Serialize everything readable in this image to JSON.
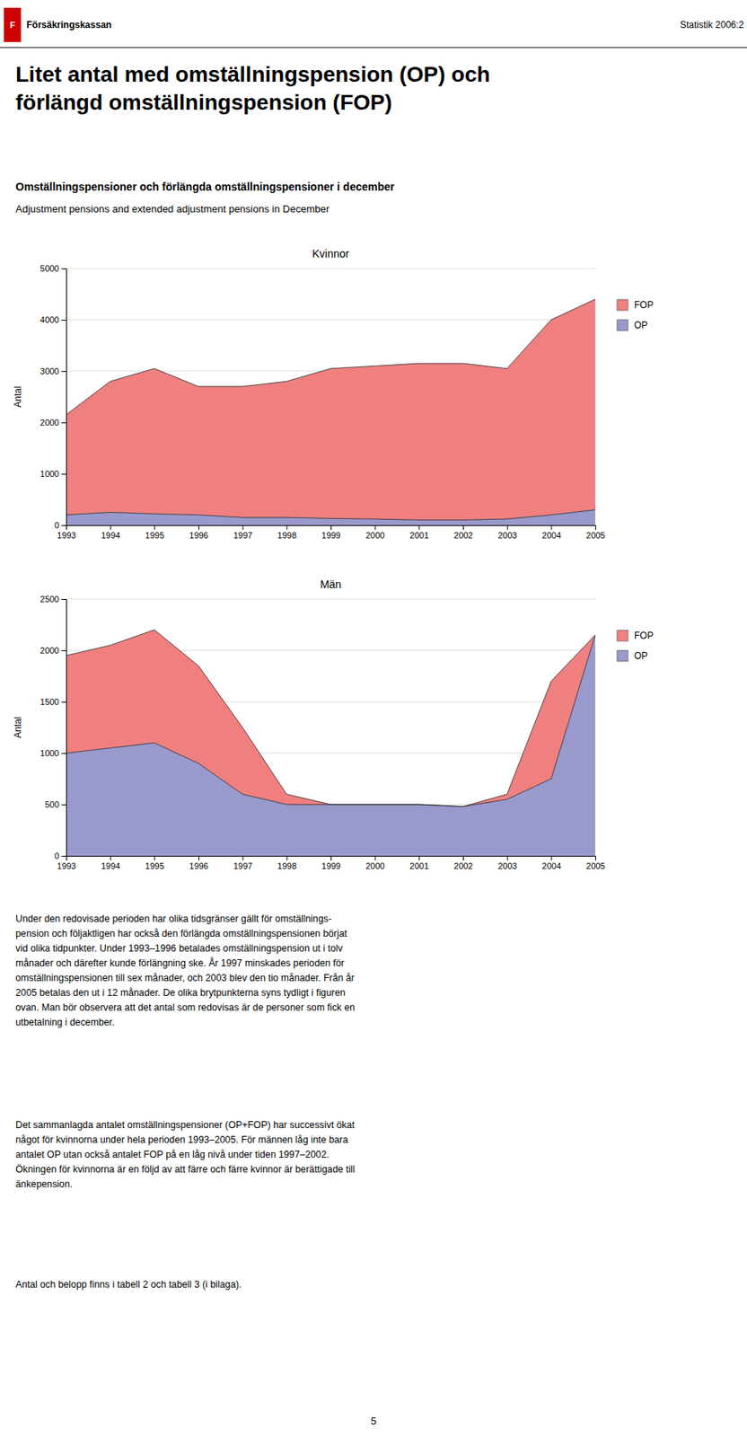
{
  "header": [
    "Försäkringskassan",
    "Statistik 2006:2"
  ],
  "logo": "F",
  "title": [
    "Litet antal med omställningspension (OP) och",
    "förlängd omställningspension (FOP)"
  ],
  "subtitle": [
    "Omställningspensioner och förlängda omställningspensioner i december",
    "Adjustment pensions and extended adjustment pensions in December"
  ],
  "chart_data": [
    {
      "type": "area",
      "stacked": true,
      "title": "Kvinnor",
      "ylabel": "Antal",
      "x": [
        1993,
        1994,
        1995,
        1996,
        1997,
        1998,
        1999,
        2000,
        2001,
        2002,
        2003,
        2004,
        2005
      ],
      "xlim": [
        1993,
        2005
      ],
      "xticks": [
        1993,
        1994,
        1995,
        1996,
        1997,
        1998,
        1999,
        2000,
        2001,
        2002,
        2003,
        2004,
        2005
      ],
      "ylim": [
        0,
        5000
      ],
      "yticks": [
        0,
        1000,
        2000,
        3000,
        4000,
        5000
      ],
      "grid": true,
      "legend": "right",
      "series": [
        {
          "name": "FOP",
          "color": "#F08080",
          "values": [
            1950,
            2550,
            2830,
            2500,
            2550,
            2650,
            2920,
            2980,
            3050,
            3050,
            2930,
            3800,
            4100
          ]
        },
        {
          "name": "OP",
          "color": "#9999CC",
          "values": [
            200,
            250,
            220,
            200,
            150,
            150,
            130,
            120,
            100,
            100,
            120,
            200,
            300
          ]
        }
      ]
    },
    {
      "type": "area",
      "stacked": true,
      "title": "Män",
      "ylabel": "Antal",
      "x": [
        1993,
        1994,
        1995,
        1996,
        1997,
        1998,
        1999,
        2000,
        2001,
        2002,
        2003,
        2004,
        2005
      ],
      "xlim": [
        1993,
        2005
      ],
      "xticks": [
        1993,
        1994,
        1995,
        1996,
        1997,
        1998,
        1999,
        2000,
        2001,
        2002,
        2003,
        2004,
        2005
      ],
      "ylim": [
        0,
        2500
      ],
      "yticks": [
        0,
        500,
        1000,
        1500,
        2000,
        2500
      ],
      "grid": true,
      "legend": "right",
      "series": [
        {
          "name": "FOP",
          "color": "#F08080",
          "values": [
            950,
            1000,
            1100,
            950,
            650,
            100,
            0,
            0,
            0,
            0,
            50,
            950,
            0
          ]
        },
        {
          "name": "OP",
          "color": "#9999CC",
          "values": [
            1000,
            1050,
            1100,
            900,
            600,
            500,
            500,
            500,
            500,
            480,
            550,
            750,
            2150
          ]
        }
      ]
    }
  ],
  "body": [
    [
      "Under den redovisade perioden har olika tidsgränser gällt för omställnings-",
      "pension och följaktligen har också den förlängda omställningspensionen börjat",
      "vid olika tidpunkter. Under 1993–1996 betalades omställningspension ut i tolv",
      "månader och därefter kunde förlängning ske. År 1997 minskades perioden för",
      "omställningspensionen till sex månader, och 2003 blev den tio månader. Från år",
      "2005 betalas den ut i 12 månader. De olika brytpunkterna syns tydligt i figuren",
      "ovan. Man bör observera att det antal som redovisas är de personer som fick en",
      "utbetalning i december."
    ],
    [
      "Det sammanlagda antalet omställningspensioner (OP+FOP) har successivt ökat",
      "något för kvinnorna under hela perioden 1993–2005. För männen låg inte bara",
      "antalet OP utan också antalet FOP på en låg nivå under tiden 1997–2002.",
      "Ökningen för kvinnorna är en följd av att färre och färre kvinnor är berättigade till",
      "änkepension."
    ],
    [
      "Antal och belopp finns i tabell 2 och tabell 3 (i bilaga)."
    ]
  ],
  "page_number": "5"
}
